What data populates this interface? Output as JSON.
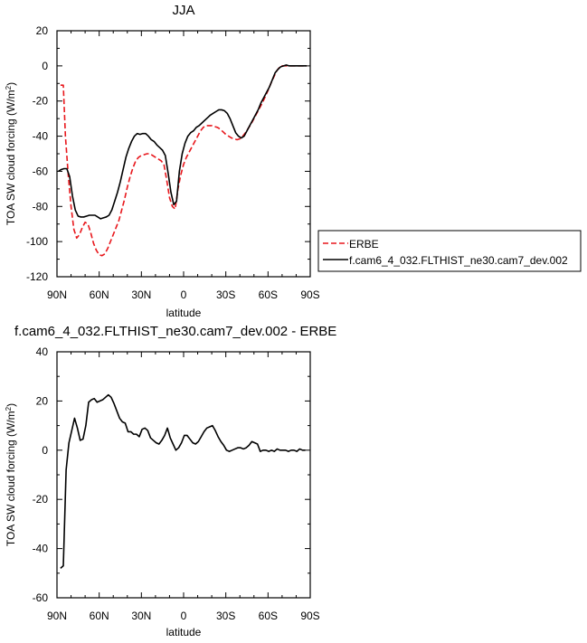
{
  "chart_data": [
    {
      "type": "line",
      "title": "JJA",
      "xlabel": "latitude",
      "ylabel": "TOA SW cloud forcing",
      "ylabel_unit": "(W/m",
      "ylabel_exp": "2",
      "ylabel_close": ")",
      "xlim": [
        90,
        -90
      ],
      "ylim": [
        -120,
        20
      ],
      "xticks": [
        90,
        60,
        30,
        0,
        -30,
        -60,
        -90
      ],
      "xticklabels": [
        "90N",
        "60N",
        "30N",
        "0",
        "30S",
        "60S",
        "90S"
      ],
      "yticks": [
        -120,
        -100,
        -80,
        -60,
        -40,
        -20,
        0,
        20
      ],
      "yticklabels": [
        "-120",
        "-100",
        "-80",
        "-60",
        "-40",
        "-20",
        "0",
        "20"
      ],
      "legend_position": "outside-right",
      "series": [
        {
          "name": "ERBE",
          "color": "#e8171c",
          "dash": "dashed",
          "points": [
            [
              87.5,
              -11
            ],
            [
              85.5,
              -11
            ],
            [
              84,
              -40
            ],
            [
              82,
              -62
            ],
            [
              80,
              -80
            ],
            [
              78,
              -93
            ],
            [
              76,
              -98
            ],
            [
              74,
              -96
            ],
            [
              72,
              -92
            ],
            [
              70,
              -89
            ],
            [
              68,
              -90
            ],
            [
              66,
              -95
            ],
            [
              64,
              -101
            ],
            [
              62,
              -105
            ],
            [
              60,
              -107.5
            ],
            [
              58,
              -108
            ],
            [
              56,
              -107
            ],
            [
              54,
              -104
            ],
            [
              52,
              -100
            ],
            [
              50,
              -96
            ],
            [
              48,
              -92
            ],
            [
              46,
              -88
            ],
            [
              44,
              -82
            ],
            [
              42,
              -76
            ],
            [
              40,
              -69
            ],
            [
              38,
              -63
            ],
            [
              36,
              -58
            ],
            [
              34,
              -54
            ],
            [
              32,
              -52
            ],
            [
              30,
              -51
            ],
            [
              28,
              -50.5
            ],
            [
              26,
              -50
            ],
            [
              24,
              -50
            ],
            [
              22,
              -51
            ],
            [
              20,
              -52
            ],
            [
              18,
              -53
            ],
            [
              16,
              -54
            ],
            [
              14,
              -56
            ],
            [
              12,
              -65
            ],
            [
              10,
              -75
            ],
            [
              8,
              -80
            ],
            [
              6,
              -81.5
            ],
            [
              4,
              -70
            ],
            [
              2,
              -62
            ],
            [
              0,
              -56
            ],
            [
              -2,
              -52
            ],
            [
              -4,
              -49
            ],
            [
              -6,
              -46
            ],
            [
              -8,
              -43
            ],
            [
              -10,
              -40
            ],
            [
              -12,
              -37
            ],
            [
              -14,
              -35
            ],
            [
              -16,
              -34
            ],
            [
              -18,
              -34
            ],
            [
              -20,
              -34
            ],
            [
              -22,
              -34.5
            ],
            [
              -24,
              -35
            ],
            [
              -26,
              -36
            ],
            [
              -28,
              -37.5
            ],
            [
              -30,
              -39
            ],
            [
              -32,
              -40
            ],
            [
              -34,
              -41
            ],
            [
              -36,
              -41.5
            ],
            [
              -38,
              -42
            ],
            [
              -40,
              -41.5
            ],
            [
              -42,
              -40
            ],
            [
              -44,
              -38
            ],
            [
              -46,
              -35.5
            ],
            [
              -48,
              -33
            ],
            [
              -50,
              -30
            ],
            [
              -52,
              -27
            ],
            [
              -54,
              -24
            ],
            [
              -56,
              -21
            ],
            [
              -58,
              -17.5
            ],
            [
              -60,
              -14
            ],
            [
              -62,
              -10
            ],
            [
              -64,
              -6.5
            ],
            [
              -66,
              -3
            ],
            [
              -68,
              -1
            ],
            [
              -70,
              0
            ],
            [
              -72,
              0
            ],
            [
              -76,
              0
            ],
            [
              -80,
              0
            ],
            [
              -84,
              0
            ],
            [
              -87.5,
              0
            ]
          ]
        },
        {
          "name": "f.cam6_4_032.FLTHIST_ne30.cam7_dev.002",
          "color": "#000000",
          "dash": "solid",
          "points": [
            [
              89,
              -60
            ],
            [
              87,
              -59
            ],
            [
              85,
              -58.5
            ],
            [
              83,
              -58.5
            ],
            [
              81,
              -63
            ],
            [
              79,
              -74
            ],
            [
              77,
              -82
            ],
            [
              75,
              -85.5
            ],
            [
              73,
              -86
            ],
            [
              71,
              -86
            ],
            [
              69,
              -85.5
            ],
            [
              67,
              -85
            ],
            [
              65,
              -85
            ],
            [
              63,
              -85
            ],
            [
              61,
              -86
            ],
            [
              59,
              -87
            ],
            [
              57,
              -86.5
            ],
            [
              55,
              -86
            ],
            [
              53,
              -85
            ],
            [
              51,
              -82
            ],
            [
              49,
              -77
            ],
            [
              47,
              -72
            ],
            [
              45,
              -66
            ],
            [
              43,
              -59
            ],
            [
              41,
              -52
            ],
            [
              39,
              -47
            ],
            [
              37,
              -43
            ],
            [
              35,
              -40
            ],
            [
              33,
              -38.5
            ],
            [
              31,
              -39
            ],
            [
              29,
              -38.5
            ],
            [
              27,
              -38.5
            ],
            [
              25,
              -40
            ],
            [
              23,
              -42
            ],
            [
              21,
              -43
            ],
            [
              19,
              -45
            ],
            [
              17,
              -46.5
            ],
            [
              15,
              -48
            ],
            [
              13,
              -51
            ],
            [
              11,
              -61
            ],
            [
              9,
              -72
            ],
            [
              7,
              -79
            ],
            [
              5,
              -77
            ],
            [
              3,
              -60
            ],
            [
              1,
              -50
            ],
            [
              -1,
              -44
            ],
            [
              -3,
              -40
            ],
            [
              -5,
              -38
            ],
            [
              -7,
              -37
            ],
            [
              -9,
              -35
            ],
            [
              -11,
              -34
            ],
            [
              -13,
              -32.5
            ],
            [
              -15,
              -31
            ],
            [
              -17,
              -29.5
            ],
            [
              -19,
              -28
            ],
            [
              -21,
              -27
            ],
            [
              -23,
              -26
            ],
            [
              -25,
              -25
            ],
            [
              -27,
              -25
            ],
            [
              -29,
              -25.5
            ],
            [
              -31,
              -27
            ],
            [
              -33,
              -30
            ],
            [
              -35,
              -34
            ],
            [
              -37,
              -38
            ],
            [
              -39,
              -40
            ],
            [
              -41,
              -41
            ],
            [
              -43,
              -40
            ],
            [
              -45,
              -37
            ],
            [
              -47,
              -34
            ],
            [
              -49,
              -31
            ],
            [
              -51,
              -28
            ],
            [
              -53,
              -25
            ],
            [
              -55,
              -21
            ],
            [
              -57,
              -18
            ],
            [
              -59,
              -15
            ],
            [
              -61,
              -12
            ],
            [
              -63,
              -8
            ],
            [
              -65,
              -4
            ],
            [
              -67,
              -2
            ],
            [
              -69,
              -0.5
            ],
            [
              -71,
              0
            ],
            [
              -73,
              0.5
            ],
            [
              -75,
              0
            ],
            [
              -77,
              0
            ],
            [
              -80,
              0
            ],
            [
              -84,
              0
            ],
            [
              -87.5,
              0
            ]
          ]
        }
      ]
    },
    {
      "type": "line",
      "title": "f.cam6_4_032.FLTHIST_ne30.cam7_dev.002 - ERBE",
      "xlabel": "latitude",
      "ylabel": "TOA SW cloud forcing",
      "ylabel_unit": "(W/m",
      "ylabel_exp": "2",
      "ylabel_close": ")",
      "xlim": [
        90,
        -90
      ],
      "ylim": [
        -60,
        40
      ],
      "xticks": [
        90,
        60,
        30,
        0,
        -30,
        -60,
        -90
      ],
      "xticklabels": [
        "90N",
        "60N",
        "30N",
        "0",
        "30S",
        "60S",
        "90S"
      ],
      "yticks": [
        -60,
        -40,
        -20,
        0,
        20,
        40
      ],
      "yticklabels": [
        "-60",
        "-40",
        "-20",
        "0",
        "20",
        "40"
      ],
      "series": [
        {
          "color": "#000000",
          "dash": "solid",
          "points": [
            [
              87.5,
              -48
            ],
            [
              85.5,
              -47
            ],
            [
              83.5,
              -8
            ],
            [
              81.5,
              3
            ],
            [
              79.5,
              8
            ],
            [
              77.5,
              13
            ],
            [
              75.5,
              9
            ],
            [
              73.5,
              4
            ],
            [
              71.5,
              4.5
            ],
            [
              69.5,
              10
            ],
            [
              67.5,
              19.5
            ],
            [
              65.5,
              20.5
            ],
            [
              63.5,
              21
            ],
            [
              61.5,
              19.5
            ],
            [
              59.5,
              20
            ],
            [
              57.5,
              20.5
            ],
            [
              55.5,
              21.5
            ],
            [
              53.5,
              22.5
            ],
            [
              51.5,
              21.5
            ],
            [
              49.5,
              19
            ],
            [
              47.5,
              16
            ],
            [
              45.5,
              13
            ],
            [
              43.5,
              11.5
            ],
            [
              41.5,
              11
            ],
            [
              39.5,
              7.5
            ],
            [
              37.5,
              7.5
            ],
            [
              35.5,
              6.5
            ],
            [
              33.5,
              6.5
            ],
            [
              31.5,
              5.5
            ],
            [
              29.5,
              8.5
            ],
            [
              27.5,
              9
            ],
            [
              25.5,
              8
            ],
            [
              23.5,
              5
            ],
            [
              21.5,
              4
            ],
            [
              19.5,
              3
            ],
            [
              17.5,
              2.5
            ],
            [
              15.5,
              4
            ],
            [
              13.5,
              6
            ],
            [
              11.5,
              9
            ],
            [
              9.5,
              5
            ],
            [
              7.5,
              2.5
            ],
            [
              5.5,
              0
            ],
            [
              3.5,
              1
            ],
            [
              1.5,
              3
            ],
            [
              -0.5,
              6
            ],
            [
              -2.5,
              6
            ],
            [
              -4.5,
              4.5
            ],
            [
              -6.5,
              3
            ],
            [
              -8.5,
              2.5
            ],
            [
              -10.5,
              3.5
            ],
            [
              -12.5,
              5.5
            ],
            [
              -14.5,
              7.5
            ],
            [
              -16.5,
              9
            ],
            [
              -18.5,
              9.5
            ],
            [
              -20.5,
              10
            ],
            [
              -22.5,
              8
            ],
            [
              -24.5,
              5.5
            ],
            [
              -26.5,
              3.5
            ],
            [
              -28.5,
              2
            ],
            [
              -30.5,
              0
            ],
            [
              -32.5,
              -0.5
            ],
            [
              -34.5,
              0
            ],
            [
              -36.5,
              0.5
            ],
            [
              -38.5,
              1
            ],
            [
              -40.5,
              1
            ],
            [
              -42.5,
              0.5
            ],
            [
              -44.5,
              1
            ],
            [
              -46.5,
              2
            ],
            [
              -48.5,
              3.5
            ],
            [
              -50.5,
              3
            ],
            [
              -52.5,
              2.5
            ],
            [
              -54.5,
              -0.5
            ],
            [
              -56.5,
              0
            ],
            [
              -58.5,
              0
            ],
            [
              -60.5,
              -0.5
            ],
            [
              -62.5,
              0
            ],
            [
              -64.5,
              -0.5
            ],
            [
              -66.5,
              0.5
            ],
            [
              -68.5,
              0
            ],
            [
              -70.5,
              0
            ],
            [
              -72.5,
              0
            ],
            [
              -74.5,
              -0.5
            ],
            [
              -76.5,
              0
            ],
            [
              -78.5,
              0
            ],
            [
              -80.5,
              -0.5
            ],
            [
              -82.5,
              0.5
            ],
            [
              -84.5,
              0
            ],
            [
              -86.5,
              0
            ]
          ]
        }
      ]
    }
  ]
}
